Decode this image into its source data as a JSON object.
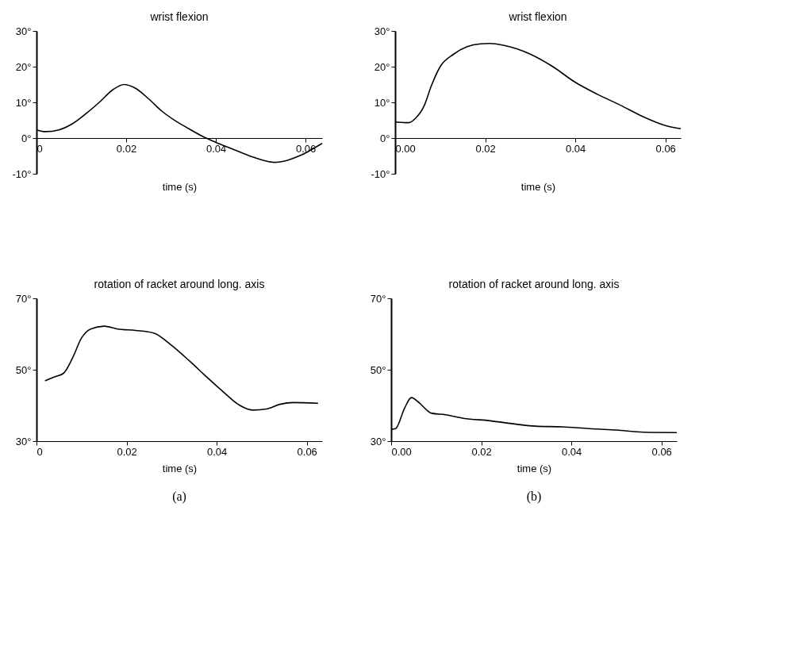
{
  "chart_data": [
    {
      "type": "line",
      "title": "wrist flexion",
      "xlabel": "time (s)",
      "grid": false,
      "marker": "none",
      "line_style": "solid",
      "xlim": [
        0,
        0.0637
      ],
      "ylim": [
        -10,
        30
      ],
      "xticks": [
        0,
        0.02,
        0.04,
        0.06
      ],
      "yticks": [
        {
          "value": -10,
          "label": "-10°"
        },
        {
          "value": 0,
          "label": "0°"
        },
        {
          "value": 10,
          "label": "10°"
        },
        {
          "value": 20,
          "label": "20°"
        },
        {
          "value": 30,
          "label": "30°"
        }
      ],
      "x": [
        0,
        0.002,
        0.005,
        0.008,
        0.011,
        0.014,
        0.017,
        0.0195,
        0.022,
        0.025,
        0.028,
        0.031,
        0.034,
        0.037,
        0.04,
        0.044,
        0.048,
        0.051,
        0.053,
        0.056,
        0.059,
        0.0625,
        0.0637
      ],
      "series": [
        {
          "color": "#000000",
          "values": [
            2.3,
            1.8,
            2.3,
            4,
            6.8,
            10,
            13.5,
            15,
            14,
            11,
            7.5,
            4.8,
            2.6,
            0.5,
            -1.2,
            -3.2,
            -5.2,
            -6.4,
            -6.8,
            -6.2,
            -4.8,
            -2.4,
            -1.5
          ]
        }
      ]
    },
    {
      "type": "line",
      "title": "wrist flexion",
      "xlabel": "time (s)",
      "grid": false,
      "marker": "none",
      "line_style": "solid",
      "xlim": [
        0,
        0.0634
      ],
      "ylim": [
        -10,
        30
      ],
      "xticks": [
        {
          "value": 0,
          "label": "0.00"
        },
        0.02,
        0.04,
        0.06
      ],
      "yticks": [
        {
          "value": -10,
          "label": "-10°"
        },
        {
          "value": 0,
          "label": "0°"
        },
        {
          "value": 10,
          "label": "10°"
        },
        {
          "value": 20,
          "label": "20°"
        },
        {
          "value": 30,
          "label": "30°"
        }
      ],
      "x": [
        0,
        0.003,
        0.0045,
        0.0065,
        0.008,
        0.01,
        0.013,
        0.016,
        0.019,
        0.021,
        0.024,
        0.027,
        0.03,
        0.035,
        0.04,
        0.045,
        0.05,
        0.055,
        0.06,
        0.0634
      ],
      "series": [
        {
          "color": "#000000",
          "values": [
            4.5,
            4.3,
            5.5,
            9.2,
            14.5,
            20,
            23.5,
            25.6,
            26.4,
            26.5,
            26,
            25,
            23.5,
            20,
            15.6,
            12.2,
            9.2,
            6,
            3.5,
            2.6
          ]
        }
      ]
    },
    {
      "type": "line",
      "title": "rotation of racket around long. axis",
      "xlabel": "time (s)",
      "grid": false,
      "marker": "none",
      "line_style": "solid",
      "annotations": [
        "(a)"
      ],
      "xlim": [
        0,
        0.0634
      ],
      "ylim": [
        30,
        70
      ],
      "xticks": [
        0,
        0.02,
        0.04,
        0.06
      ],
      "yticks": [
        {
          "value": 30,
          "label": "30°"
        },
        {
          "value": 50,
          "label": "50°"
        },
        {
          "value": 70,
          "label": "70°"
        }
      ],
      "x": [
        0.0019,
        0.004,
        0.006,
        0.008,
        0.01,
        0.012,
        0.015,
        0.018,
        0.022,
        0.026,
        0.03,
        0.034,
        0.038,
        0.042,
        0.045,
        0.048,
        0.051,
        0.054,
        0.057,
        0.0625
      ],
      "series": [
        {
          "color": "#000000",
          "values": [
            46.9,
            48,
            49,
            53.3,
            58.9,
            61.4,
            62.2,
            61.4,
            61,
            60.3,
            56.8,
            52.4,
            47.7,
            43.2,
            40.1,
            38.7,
            39,
            40.3,
            40.8,
            40.6
          ]
        }
      ]
    },
    {
      "type": "line",
      "title": "rotation of racket around long. axis",
      "xlabel": "time (s)",
      "grid": false,
      "marker": "none",
      "line_style": "solid",
      "annotations": [
        "(b)"
      ],
      "xlim": [
        0,
        0.0634
      ],
      "ylim": [
        30,
        70
      ],
      "xticks": [
        {
          "value": 0,
          "label": "0.00"
        },
        0.02,
        0.04,
        0.06
      ],
      "yticks": [
        {
          "value": 30,
          "label": "30°"
        },
        {
          "value": 50,
          "label": "50°"
        },
        {
          "value": 70,
          "label": "70°"
        }
      ],
      "x": [
        0,
        0.001,
        0.003,
        0.0045,
        0.006,
        0.008,
        0.009,
        0.012,
        0.016,
        0.022,
        0.028,
        0.032,
        0.038,
        0.044,
        0.05,
        0.056,
        0.0634
      ],
      "series": [
        {
          "color": "#000000",
          "values": [
            33.3,
            33.5,
            39.3,
            42.2,
            41,
            38.6,
            37.8,
            37.4,
            36.4,
            35.7,
            34.7,
            34.2,
            34,
            33.5,
            33.1,
            32.5,
            32.4
          ]
        }
      ]
    }
  ]
}
